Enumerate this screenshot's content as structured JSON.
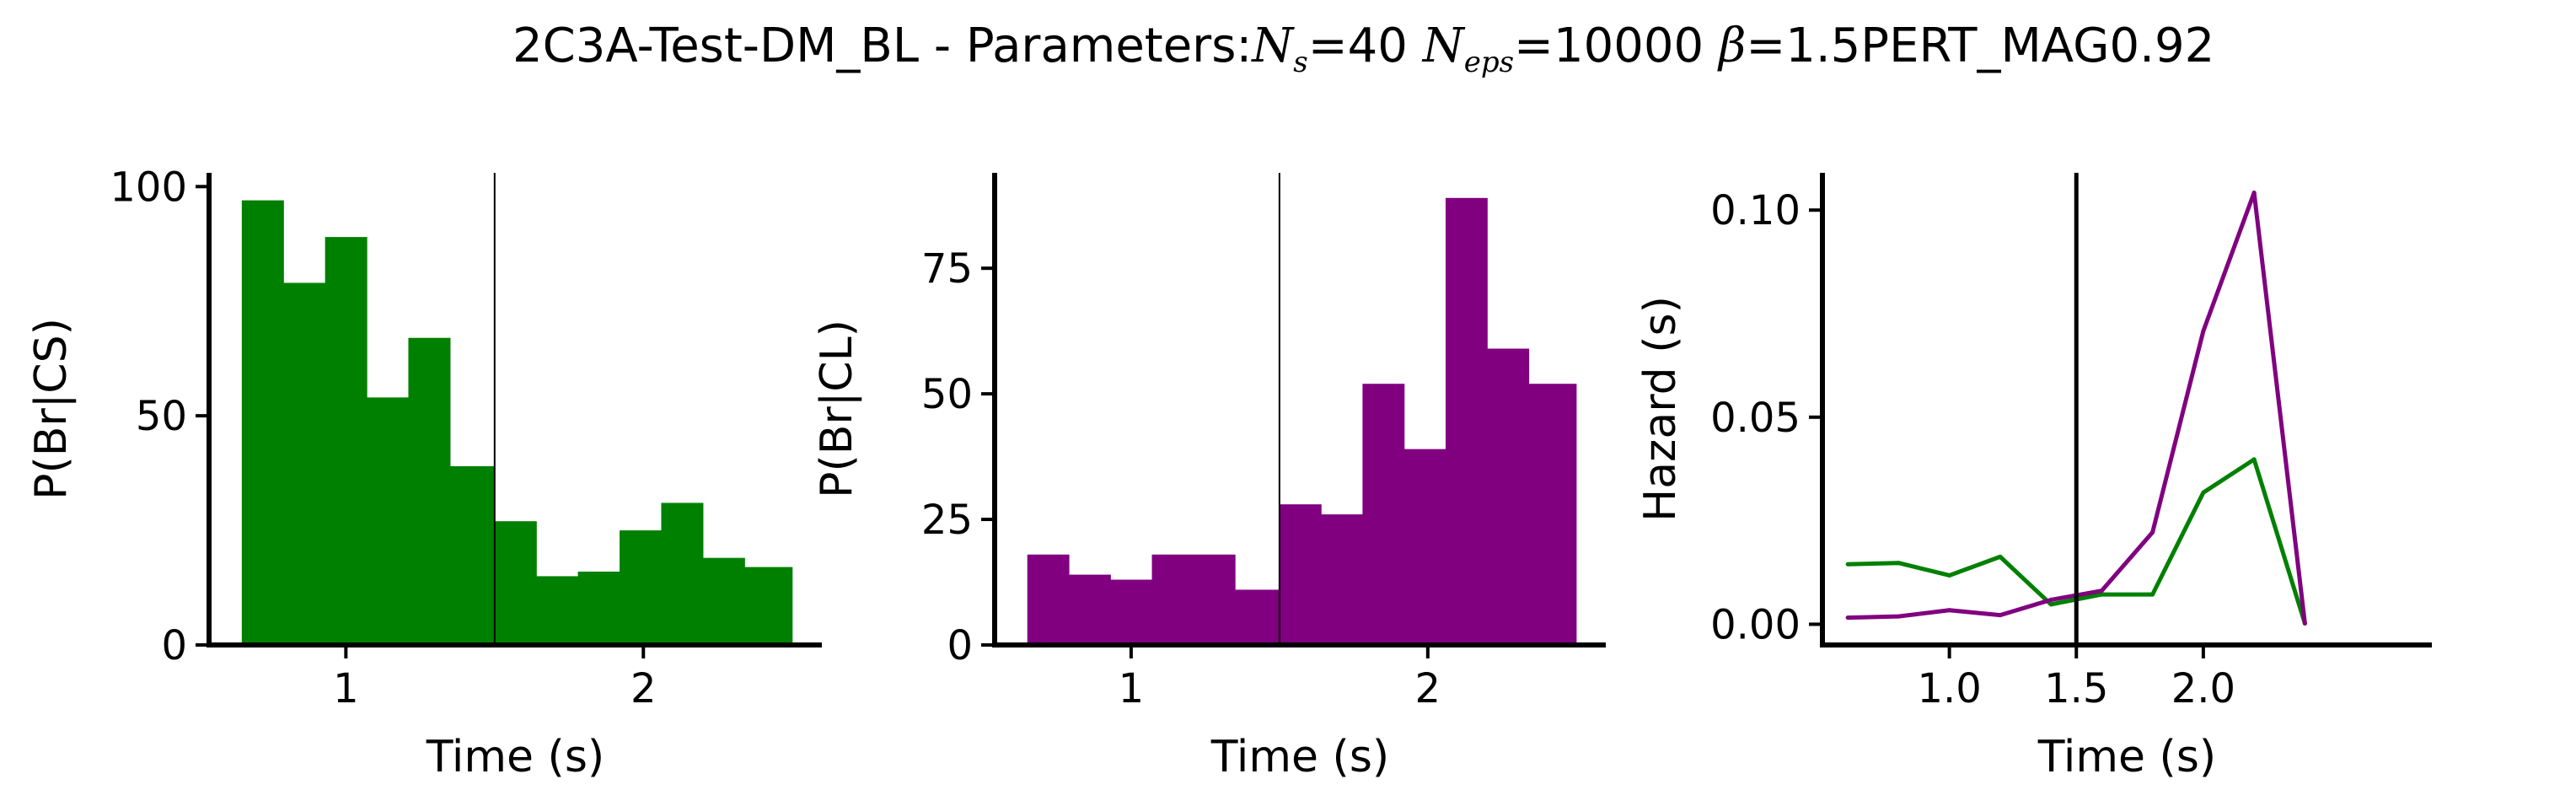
{
  "figure": {
    "title_prefix": "2C3A-Test-DM_BL - Parameters:",
    "title_ns_sym": "N",
    "title_ns_sub": "s",
    "title_ns_val": "=40",
    "title_neps_sym": "N",
    "title_neps_sub": "eps",
    "title_neps_val": "=10000",
    "title_beta_sym": "β",
    "title_beta_val": "=1.5",
    "title_suffix": "PERT_MAG0.92"
  },
  "colors": {
    "green": "#008000",
    "purple": "#800080",
    "axis": "#000000"
  },
  "chart_data": [
    {
      "type": "bar",
      "title": "",
      "xlabel": "Time (s)",
      "ylabel": "P(Br|CS)",
      "color": "green",
      "bin_edges": [
        0.65,
        0.79,
        0.93,
        1.07,
        1.21,
        1.35,
        1.5,
        1.64,
        1.78,
        1.92,
        2.06,
        2.2,
        2.34,
        2.5
      ],
      "values": [
        97,
        79,
        89,
        54,
        67,
        39,
        27,
        15,
        16,
        25,
        31,
        19,
        17
      ],
      "xlim": [
        0.54,
        2.6
      ],
      "ylim": [
        0,
        103
      ],
      "xticks": [
        1,
        2
      ],
      "xtick_labels": [
        "1",
        "2"
      ],
      "yticks": [
        0,
        50,
        100
      ],
      "ytick_labels": [
        "0",
        "50",
        "100"
      ],
      "vline": {
        "x": 1.5,
        "weight": "thin"
      }
    },
    {
      "type": "bar",
      "title": "",
      "xlabel": "Time (s)",
      "ylabel": "P(Br|CL)",
      "color": "purple",
      "bin_edges": [
        0.65,
        0.79,
        0.93,
        1.07,
        1.21,
        1.35,
        1.5,
        1.64,
        1.78,
        1.92,
        2.06,
        2.2,
        2.34,
        2.5
      ],
      "values": [
        18,
        14,
        13,
        18,
        18,
        11,
        28,
        26,
        52,
        39,
        89,
        59,
        52
      ],
      "xlim": [
        0.54,
        2.6
      ],
      "ylim": [
        0,
        94
      ],
      "xticks": [
        1,
        2
      ],
      "xtick_labels": [
        "1",
        "2"
      ],
      "yticks": [
        0,
        25,
        50,
        75
      ],
      "ytick_labels": [
        "0",
        "25",
        "50",
        "75"
      ],
      "vline": {
        "x": 1.5,
        "weight": "thin"
      }
    },
    {
      "type": "line",
      "title": "",
      "xlabel": "Time (s)",
      "ylabel": "Hazard (s)",
      "x": [
        0.6,
        0.8,
        1.0,
        1.2,
        1.4,
        1.6,
        1.8,
        2.0,
        2.2,
        2.4
      ],
      "series": [
        {
          "color": "green",
          "values": [
            0.0145,
            0.0148,
            0.0118,
            0.0163,
            0.0048,
            0.0072,
            0.0072,
            0.0318,
            0.0398,
            0.0002
          ]
        },
        {
          "color": "purple",
          "values": [
            0.0016,
            0.0019,
            0.0034,
            0.0022,
            0.0059,
            0.0081,
            0.0222,
            0.0708,
            0.1042,
            0.0002
          ]
        }
      ],
      "xlim": [
        0.5,
        2.9
      ],
      "ylim": [
        -0.005,
        0.109
      ],
      "xticks": [
        1.0,
        1.5,
        2.0
      ],
      "xtick_labels": [
        "1.0",
        "1.5",
        "2.0"
      ],
      "yticks": [
        0.0,
        0.05,
        0.1
      ],
      "ytick_labels": [
        "0.00",
        "0.05",
        "0.10"
      ],
      "vline": {
        "x": 1.5,
        "weight": "thick"
      }
    }
  ]
}
